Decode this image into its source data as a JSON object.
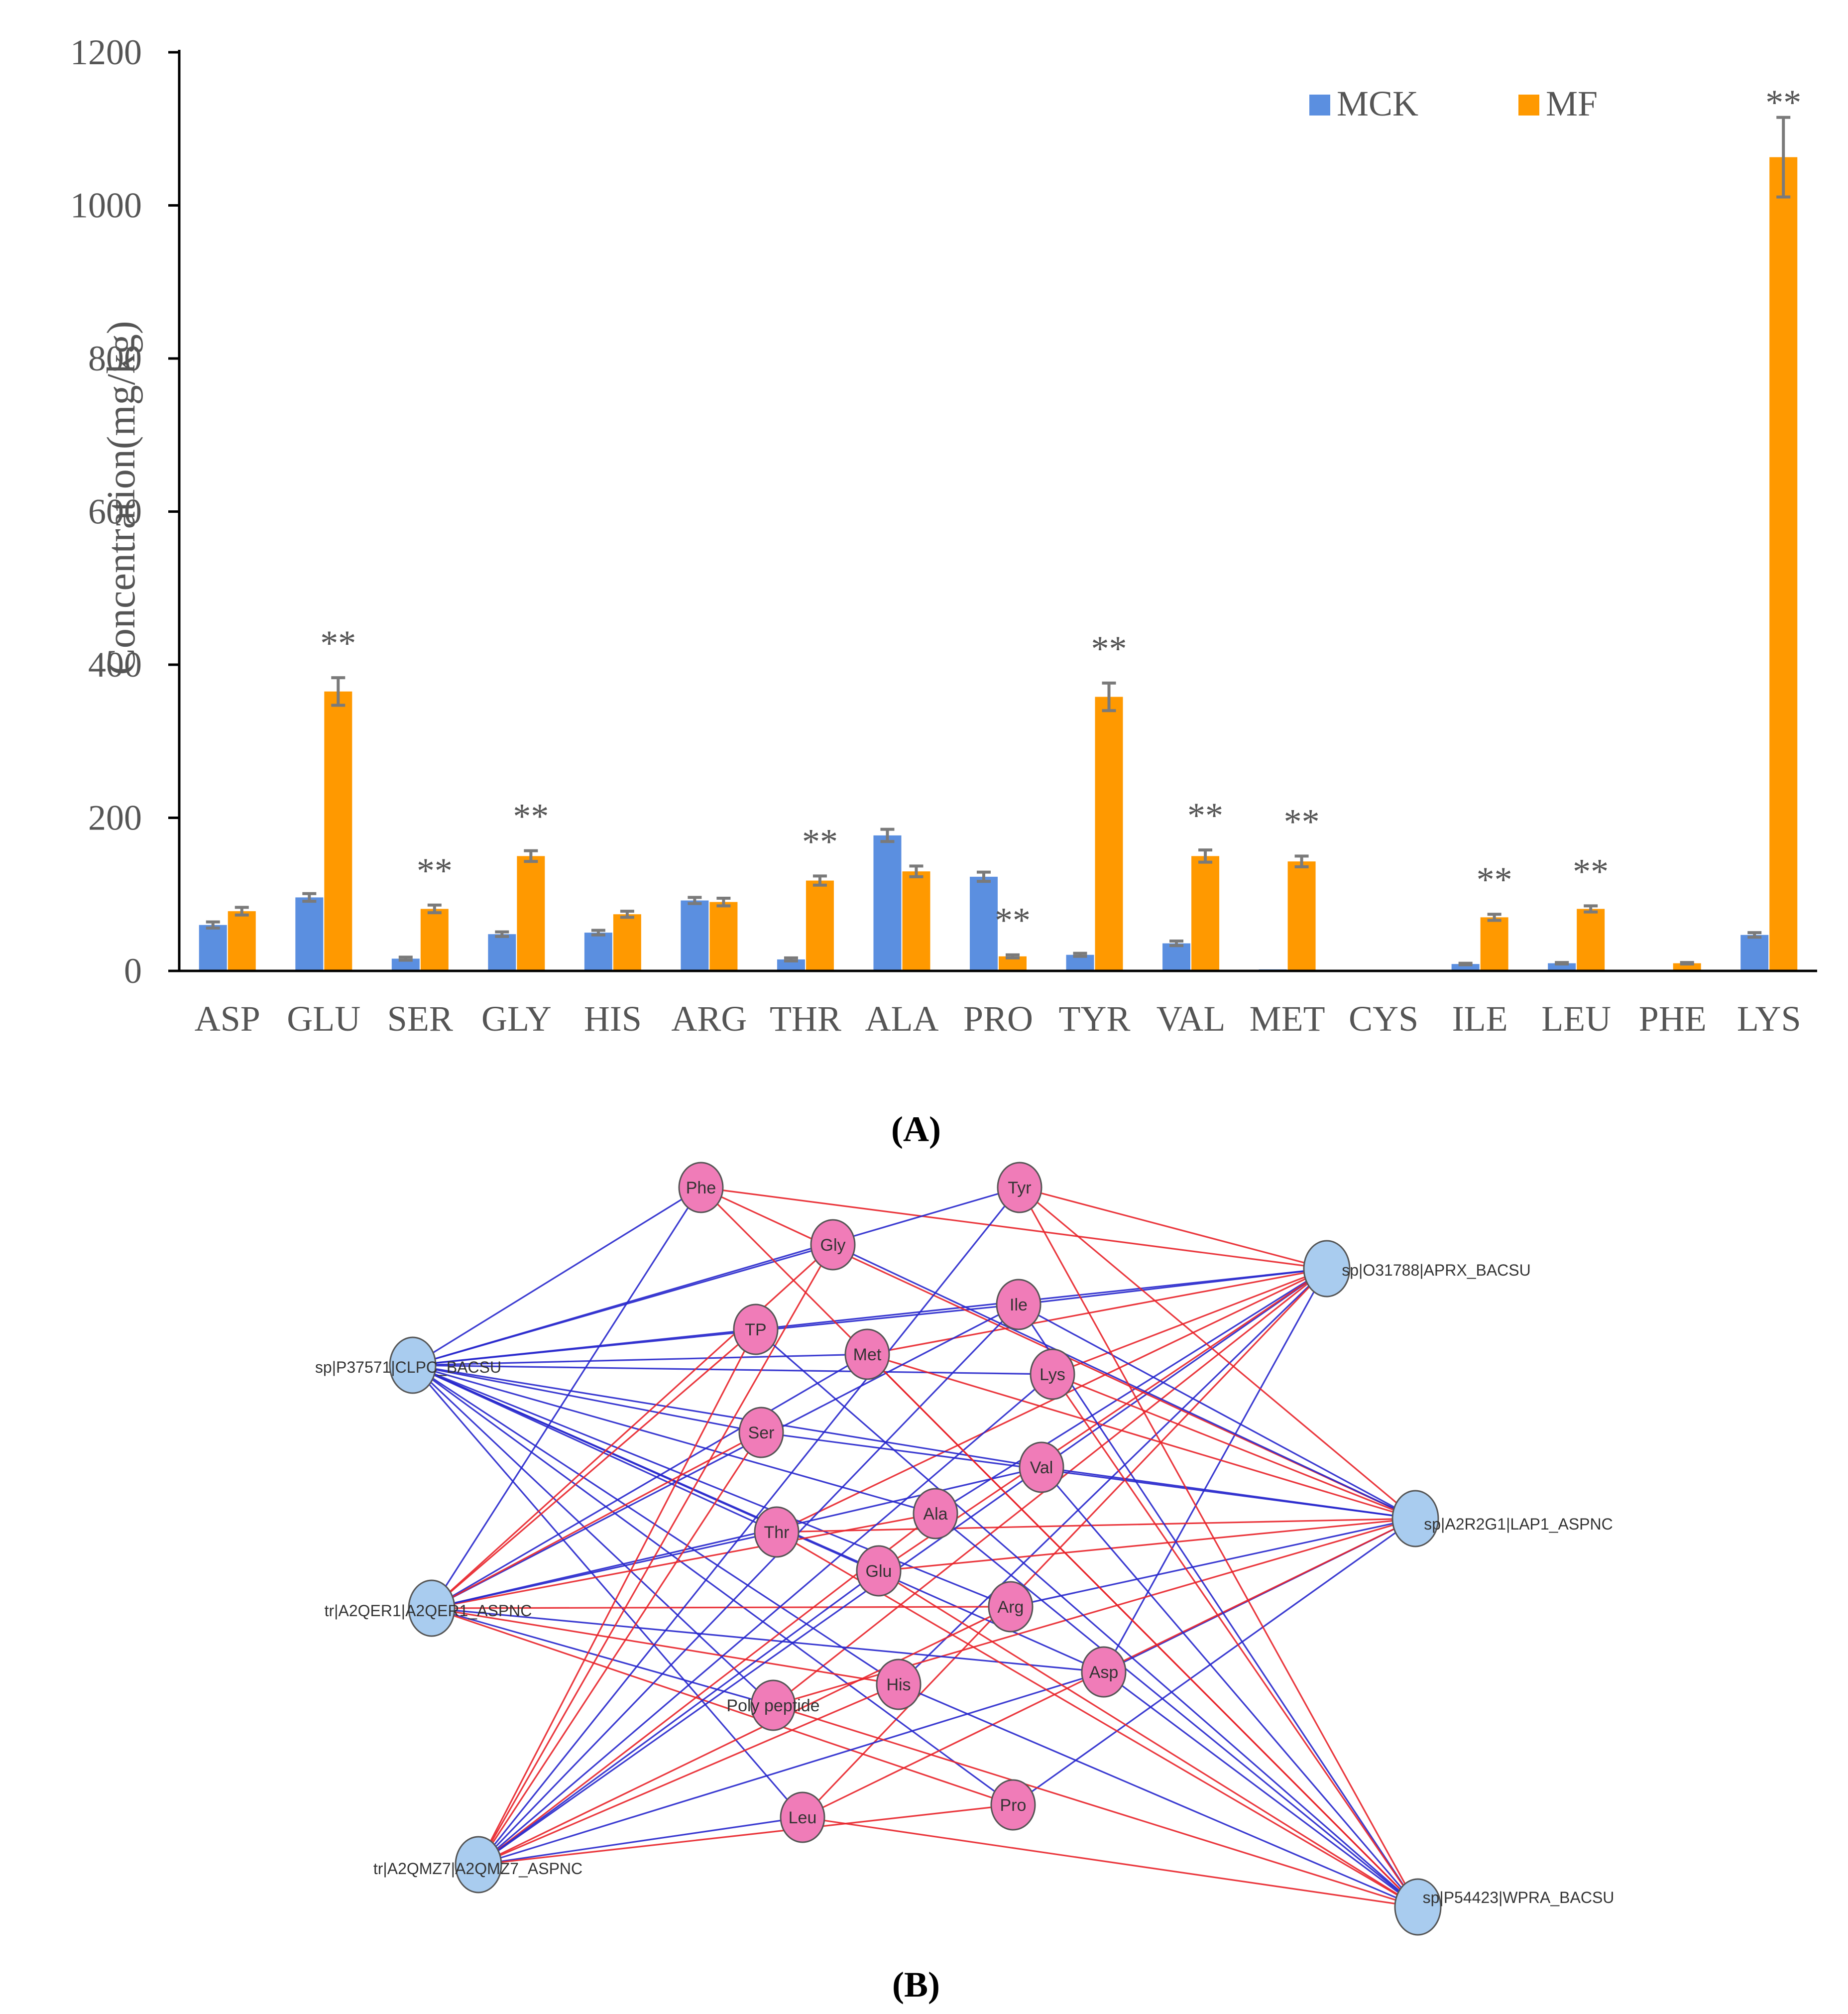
{
  "chart_data": [
    {
      "type": "bar",
      "panel_label": "(A)",
      "ylabel": "Concentration(mg/kg)",
      "xlabel": "",
      "ylim": [
        0,
        1200
      ],
      "yticks": [
        0,
        200,
        400,
        600,
        800,
        1000,
        1200
      ],
      "grid": false,
      "legend_position": "top-right",
      "categories": [
        "ASP",
        "GLU",
        "SER",
        "GLY",
        "HIS",
        "ARG",
        "THR",
        "ALA",
        "PRO",
        "TYR",
        "VAL",
        "MET",
        "CYS",
        "ILE",
        "LEU",
        "PHE",
        "LYS"
      ],
      "series": [
        {
          "name": "MCK",
          "color": "#5B8FE0",
          "values": [
            60,
            96,
            16,
            48,
            50,
            92,
            15,
            177,
            123,
            21,
            36,
            2,
            0,
            9,
            10,
            0,
            47
          ],
          "errors": [
            4,
            5,
            2,
            3,
            3,
            4,
            2,
            8,
            6,
            2,
            3,
            0,
            0,
            1,
            1,
            0,
            3
          ]
        },
        {
          "name": "MF",
          "color": "#FF9900",
          "values": [
            78,
            365,
            81,
            150,
            74,
            90,
            118,
            130,
            19,
            358,
            150,
            143,
            0,
            70,
            81,
            10,
            1063
          ],
          "errors": [
            5,
            18,
            5,
            7,
            4,
            5,
            6,
            7,
            2,
            18,
            8,
            7,
            0,
            4,
            4,
            1,
            52
          ]
        }
      ],
      "annotations": [
        {
          "category": "GLU",
          "text": "**"
        },
        {
          "category": "SER",
          "text": "**"
        },
        {
          "category": "GLY",
          "text": "**"
        },
        {
          "category": "THR",
          "text": "**"
        },
        {
          "category": "PRO",
          "text": "**"
        },
        {
          "category": "TYR",
          "text": "**"
        },
        {
          "category": "VAL",
          "text": "**"
        },
        {
          "category": "MET",
          "text": "**"
        },
        {
          "category": "ILE",
          "text": "**"
        },
        {
          "category": "LEU",
          "text": "**"
        },
        {
          "category": "LYS",
          "text": "**"
        }
      ]
    },
    {
      "type": "network",
      "panel_label": "(B)",
      "colors": {
        "amino_node": "#F07CB8",
        "protein_node": "#A9CCEF",
        "edge_positive": "#E8232A",
        "edge_negative": "#2727CC"
      },
      "amino_nodes": [
        "Phe",
        "Tyr",
        "Gly",
        "Ile",
        "TP",
        "Met",
        "Lys",
        "Ser",
        "Val",
        "Ala",
        "Thr",
        "Glu",
        "Arg",
        "Asp",
        "His",
        "Poly peptide",
        "Leu",
        "Pro"
      ],
      "protein_nodes": [
        "sp|O31788|APRX_BACSU",
        "sp|P37571|CLPC_BACSU",
        "sp|A2R2G1|LAP1_ASPNC",
        "tr|A2QER1|A2QER1_ASPNC",
        "tr|A2QMZ7|A2QMZ7_ASPNC",
        "sp|P54423|WPRA_BACSU"
      ]
    }
  ]
}
